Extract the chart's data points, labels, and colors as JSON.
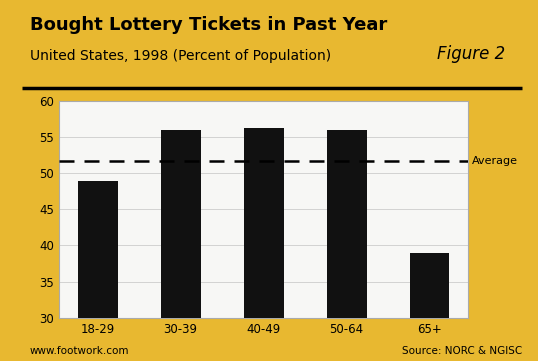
{
  "title_line1": "Bought Lottery Tickets in Past Year",
  "title_line2": "United States, 1998 (Percent of Population)",
  "figure_label": "Figure 2",
  "categories": [
    "18-29",
    "30-39",
    "40-49",
    "50-64",
    "65+"
  ],
  "values": [
    49,
    56,
    56.3,
    56,
    39
  ],
  "average": 51.7,
  "bar_color": "#111111",
  "average_label": "Average",
  "ylim": [
    30,
    60
  ],
  "yticks": [
    30,
    35,
    40,
    45,
    50,
    55,
    60
  ],
  "footer_left": "www.footwork.com",
  "footer_right": "Source: NORC & NGISC",
  "background_color": "#e8b830",
  "plot_bg_color": "#f7f7f5",
  "title_fontsize": 13,
  "subtitle_fontsize": 10,
  "figure_label_fontsize": 12,
  "tick_fontsize": 8.5,
  "footer_fontsize": 7.5,
  "avg_label_fontsize": 8
}
